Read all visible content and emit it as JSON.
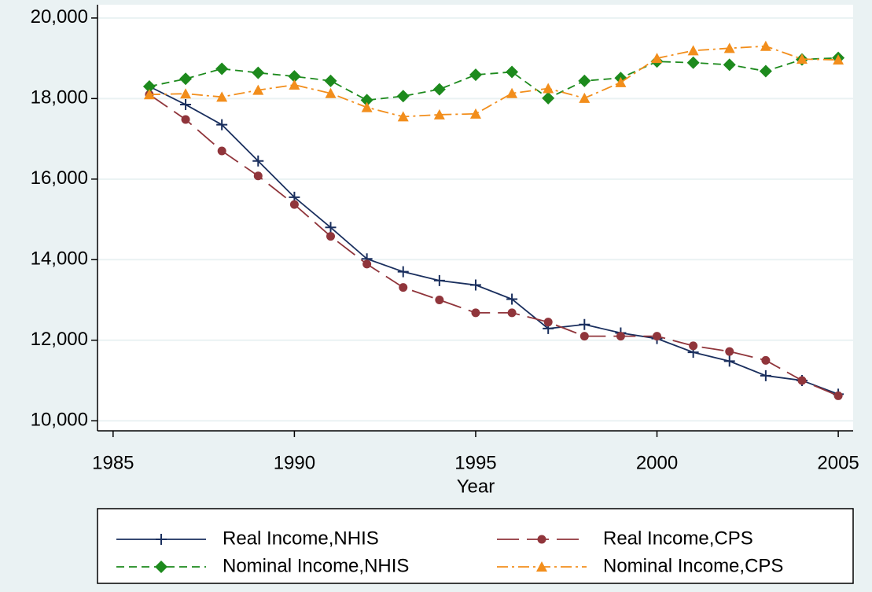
{
  "chart_data": {
    "type": "line",
    "x_label": "Year",
    "x": [
      1986,
      1987,
      1988,
      1989,
      1990,
      1991,
      1992,
      1993,
      1994,
      1995,
      1996,
      1997,
      1998,
      1999,
      2000,
      2001,
      2002,
      2003,
      2004,
      2005
    ],
    "xlim": [
      1984.57,
      2005.41
    ],
    "xticks": [
      1985,
      1990,
      1995,
      2000,
      2005
    ],
    "ylim": [
      9750,
      20330
    ],
    "yticks": [
      {
        "value": 10000,
        "label": "10,000"
      },
      {
        "value": 12000,
        "label": "12,000"
      },
      {
        "value": 14000,
        "label": "14,000"
      },
      {
        "value": 16000,
        "label": "16,000"
      },
      {
        "value": 18000,
        "label": "18,000"
      },
      {
        "value": 20000,
        "label": "20,000"
      }
    ],
    "grid": true,
    "legend": "bottom",
    "series": [
      {
        "name": "Real Income,NHIS",
        "color": "#1a2f5e",
        "dash": "none",
        "marker": "plus",
        "values": [
          18300,
          17850,
          17350,
          16450,
          15550,
          14800,
          14020,
          13700,
          13480,
          13370,
          13020,
          12290,
          12390,
          12180,
          12040,
          11700,
          11480,
          11120,
          11000,
          10660
        ]
      },
      {
        "name": "Real Income,CPS",
        "color": "#90353b",
        "dash": "28 10",
        "marker": "circle",
        "values": [
          18100,
          17480,
          16700,
          16080,
          15370,
          14580,
          13890,
          13310,
          13000,
          12680,
          12680,
          12450,
          12100,
          12100,
          12100,
          11860,
          11720,
          11500,
          11000,
          10620
        ]
      },
      {
        "name": "Nominal Income,NHIS",
        "color": "#1d8a1d",
        "dash": "10 6",
        "marker": "diamond",
        "values": [
          18300,
          18490,
          18740,
          18640,
          18550,
          18440,
          17960,
          18060,
          18230,
          18590,
          18660,
          18010,
          18440,
          18510,
          18920,
          18890,
          18840,
          18680,
          18970,
          19010
        ]
      },
      {
        "name": "Nominal Income,CPS",
        "color": "#f28e1c",
        "dash": "14 5 3 5",
        "marker": "triangle",
        "values": [
          18100,
          18120,
          18040,
          18210,
          18340,
          18130,
          17780,
          17550,
          17600,
          17620,
          18130,
          18250,
          18010,
          18400,
          19000,
          19190,
          19250,
          19300,
          18980,
          18960
        ]
      }
    ]
  }
}
